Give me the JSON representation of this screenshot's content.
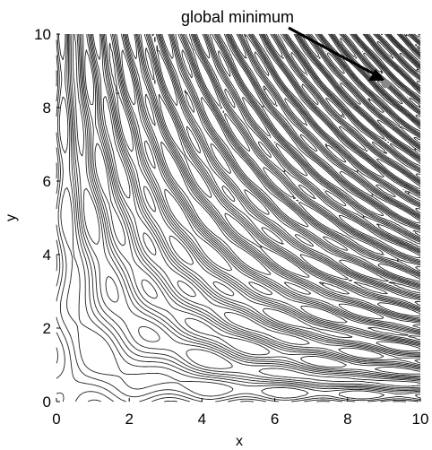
{
  "chart_data": {
    "type": "contour",
    "function": "sin(x*y) + small oscillating background (contour plot)",
    "xlabel": "x",
    "ylabel": "y",
    "xlim": [
      0,
      10
    ],
    "ylim": [
      0,
      10
    ],
    "xticks": [
      0,
      2,
      4,
      6,
      8,
      10
    ],
    "yticks": [
      0,
      2,
      4,
      6,
      8,
      10
    ],
    "xtick_labels": [
      "0",
      "2",
      "4",
      "6",
      "8",
      "10"
    ],
    "ytick_labels": [
      "0",
      "2",
      "4",
      "6",
      "8",
      "10"
    ],
    "grid": false,
    "line_color": "#222222",
    "line_style": "dashed",
    "annotation": {
      "text": "global minimum",
      "point": {
        "x": 9.05,
        "y": 8.65
      },
      "marker_color": "#888888"
    }
  }
}
